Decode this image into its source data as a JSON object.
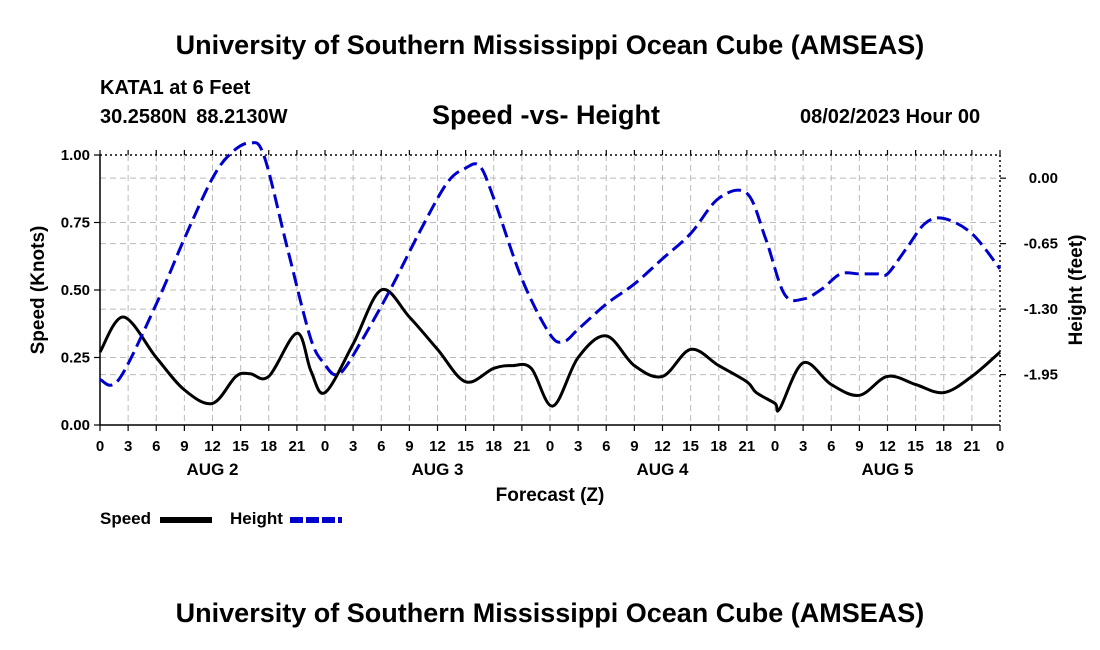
{
  "header": {
    "title": "University of Southern Mississippi Ocean Cube (AMSEAS)",
    "station": "KATA1 at 6 Feet",
    "coords": "30.2580N  88.2130W",
    "subtitle": "Speed -vs- Height",
    "datetime": "08/02/2023 Hour 00"
  },
  "footer": {
    "title": "University of Southern Mississippi Ocean Cube (AMSEAS)"
  },
  "legend": {
    "speed_label": "Speed",
    "height_label": "Height"
  },
  "colors": {
    "speed": "#000000",
    "height": "#0000cc",
    "grid": "#bbbbbb"
  },
  "chart_data": {
    "type": "line",
    "title": "Speed -vs- Height",
    "xlabel": "Forecast (Z)",
    "ylabel_left": "Speed (Knots)",
    "ylabel_right": "Height (feet)",
    "xlim_hours": [
      0,
      96
    ],
    "x_ticks": [
      0,
      3,
      6,
      9,
      12,
      15,
      18,
      21,
      24,
      27,
      30,
      33,
      36,
      39,
      42,
      45,
      48,
      51,
      54,
      57,
      60,
      63,
      66,
      69,
      72,
      75,
      78,
      81,
      84,
      87,
      90,
      93,
      96
    ],
    "x_tick_labels": [
      "0",
      "3",
      "6",
      "9",
      "12",
      "15",
      "18",
      "21",
      "0",
      "3",
      "6",
      "9",
      "12",
      "15",
      "18",
      "21",
      "0",
      "3",
      "6",
      "9",
      "12",
      "15",
      "18",
      "21",
      "0",
      "3",
      "6",
      "9",
      "12",
      "15",
      "18",
      "21",
      "0"
    ],
    "day_labels": [
      {
        "label": "AUG 2",
        "hour": 12
      },
      {
        "label": "AUG 3",
        "hour": 36
      },
      {
        "label": "AUG 4",
        "hour": 60
      },
      {
        "label": "AUG 5",
        "hour": 84
      }
    ],
    "ylim_left": [
      0,
      1
    ],
    "y_ticks_left": [
      0,
      0.25,
      0.5,
      0.75,
      1
    ],
    "y_tick_labels_left": [
      "0.00",
      "0.25",
      "0.50",
      "0.75",
      "1.00"
    ],
    "ylim_right": [
      -2.45,
      0.23
    ],
    "y_ticks_right": [
      0,
      -0.65,
      -1.3,
      -1.95
    ],
    "y_tick_labels_right": [
      "0.00",
      "-0.65",
      "-1.30",
      "-1.95"
    ],
    "series": [
      {
        "name": "Speed",
        "axis": "left",
        "style": "solid",
        "x": [
          0,
          2.5,
          6,
          9,
          12,
          14.5,
          16,
          18,
          21,
          22.5,
          24,
          27,
          30,
          33,
          36,
          39,
          42,
          44,
          46,
          48.3,
          51,
          54,
          57,
          60,
          63,
          66,
          69,
          70,
          72,
          72.5,
          75,
          78,
          81,
          84,
          87,
          90,
          93,
          96
        ],
        "values": [
          0.27,
          0.4,
          0.25,
          0.13,
          0.08,
          0.18,
          0.19,
          0.18,
          0.34,
          0.2,
          0.12,
          0.3,
          0.5,
          0.4,
          0.28,
          0.16,
          0.21,
          0.22,
          0.21,
          0.07,
          0.25,
          0.33,
          0.22,
          0.18,
          0.28,
          0.22,
          0.16,
          0.12,
          0.08,
          0.06,
          0.23,
          0.15,
          0.11,
          0.18,
          0.15,
          0.12,
          0.18,
          0.27
        ]
      },
      {
        "name": "Height",
        "axis": "right",
        "style": "dashed",
        "x": [
          0,
          2,
          6,
          9,
          12,
          14,
          16,
          17.5,
          20,
          22.5,
          24,
          25,
          26,
          28,
          31,
          34,
          37,
          39,
          40.5,
          42,
          45,
          48,
          49.5,
          51,
          54,
          57,
          60,
          63,
          66,
          69,
          71,
          73,
          75,
          77,
          79,
          81,
          83,
          84,
          86,
          88,
          90,
          93,
          96
        ],
        "values": [
          -2.0,
          -2.0,
          -1.25,
          -0.6,
          0.0,
          0.25,
          0.35,
          0.22,
          -0.7,
          -1.6,
          -1.85,
          -1.95,
          -1.9,
          -1.6,
          -1.1,
          -0.55,
          -0.05,
          0.1,
          0.12,
          -0.2,
          -1.0,
          -1.55,
          -1.62,
          -1.5,
          -1.25,
          -1.05,
          -0.8,
          -0.55,
          -0.2,
          -0.15,
          -0.6,
          -1.15,
          -1.2,
          -1.1,
          -0.95,
          -0.95,
          -0.95,
          -0.95,
          -0.7,
          -0.45,
          -0.4,
          -0.55,
          -0.9
        ]
      }
    ]
  }
}
